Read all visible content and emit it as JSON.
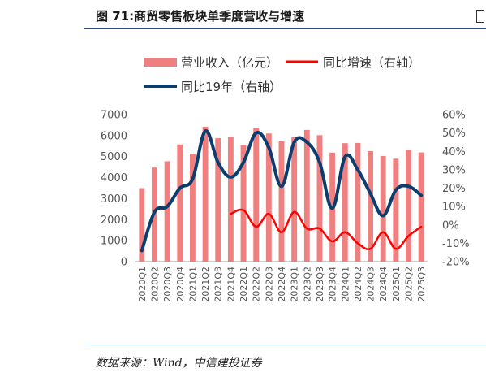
{
  "header": {
    "title": "图 71:商贸零售板块单季度营收与增速"
  },
  "footer": {
    "source": "数据来源：Wind，中信建投证券"
  },
  "chart_data": {
    "type": "bar",
    "categories": [
      "2020Q1",
      "2020Q2",
      "2020Q3",
      "2020Q4",
      "2021Q1",
      "2021Q2",
      "2021Q3",
      "2021Q4",
      "2022Q1",
      "2022Q2",
      "2022Q3",
      "2022Q4",
      "2023Q1",
      "2023Q2",
      "2023Q3",
      "2023Q4",
      "2024Q1",
      "2024Q2",
      "2024Q3",
      "2024Q4",
      "2025Q1",
      "2025Q2",
      "2025Q3"
    ],
    "y_left": {
      "min": 0,
      "max": 7000,
      "step": 1000,
      "ticks": [
        "0",
        "1000",
        "2000",
        "3000",
        "4000",
        "5000",
        "6000",
        "7000"
      ]
    },
    "y_right": {
      "min": -20,
      "max": 60,
      "step": 10,
      "ticks": [
        "-20%",
        "-10%",
        "0%",
        "10%",
        "20%",
        "30%",
        "40%",
        "50%",
        "60%"
      ]
    },
    "series": [
      {
        "name": "营业收入（亿元）",
        "type": "bar",
        "axis": "left",
        "color": "#f08080",
        "values": [
          3500,
          4480,
          4780,
          5580,
          5130,
          6420,
          5880,
          5950,
          5560,
          6380,
          6100,
          5730,
          5930,
          6270,
          6020,
          5190,
          5640,
          5650,
          5260,
          5030,
          4900,
          5330,
          5200
        ]
      },
      {
        "name": "同比增速（右轴）",
        "type": "line",
        "axis": "right",
        "color": "#ff0000",
        "values": [
          null,
          null,
          null,
          null,
          null,
          null,
          null,
          6,
          8,
          -1,
          6,
          -4,
          7,
          -2,
          -2,
          -9,
          -4,
          -10,
          -13,
          -4,
          -13,
          -6,
          -1
        ]
      },
      {
        "name": "同比19年（右轴）",
        "type": "line",
        "axis": "right",
        "color": "#0b3d6e",
        "values": [
          -14,
          7,
          10,
          20,
          25,
          51,
          34,
          26,
          34,
          50,
          42,
          21,
          45,
          45,
          34,
          9,
          37,
          30,
          17,
          5,
          19,
          21,
          16
        ]
      }
    ]
  }
}
